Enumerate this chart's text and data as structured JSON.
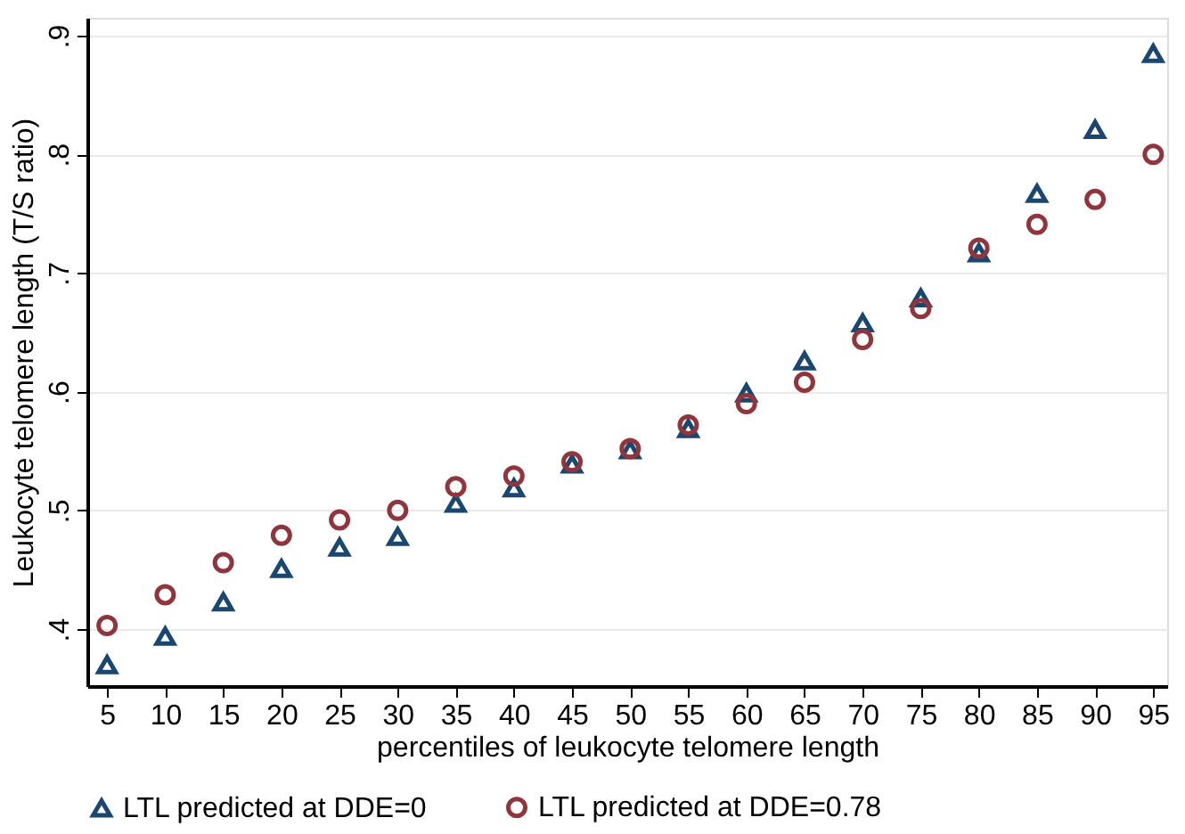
{
  "chart_data": {
    "type": "scatter",
    "xlabel": "percentiles of leukocyte telomere length",
    "ylabel": "Leukocyte telomere length (T/S ratio)",
    "x": [
      5,
      10,
      15,
      20,
      25,
      30,
      35,
      40,
      45,
      50,
      55,
      60,
      65,
      70,
      75,
      80,
      85,
      90,
      95
    ],
    "series": [
      {
        "name": "LTL predicted at DDE=0",
        "color": "#1a476f",
        "marker": "triangle",
        "values": [
          0.37,
          0.394,
          0.423,
          0.451,
          0.469,
          0.478,
          0.506,
          0.519,
          0.539,
          0.551,
          0.569,
          0.599,
          0.626,
          0.658,
          0.679,
          0.717,
          0.767,
          0.821,
          0.885
        ]
      },
      {
        "name": "LTL predicted at DDE=0.78",
        "color": "#90353b",
        "marker": "circle",
        "values": [
          0.403,
          0.429,
          0.456,
          0.479,
          0.492,
          0.5,
          0.52,
          0.529,
          0.541,
          0.552,
          0.572,
          0.59,
          0.608,
          0.644,
          0.67,
          0.721,
          0.741,
          0.762,
          0.8
        ]
      }
    ],
    "xlim": [
      3.3,
      96.2
    ],
    "xticks": [
      5,
      10,
      15,
      20,
      25,
      30,
      35,
      40,
      45,
      50,
      55,
      60,
      65,
      70,
      75,
      80,
      85,
      90,
      95
    ],
    "ylim": [
      0.352,
      0.915
    ],
    "yticks": [
      {
        "value": 0.4,
        "label": ".4"
      },
      {
        "value": 0.5,
        "label": ".5"
      },
      {
        "value": 0.6,
        "label": ".6"
      },
      {
        "value": 0.7,
        "label": ".7"
      },
      {
        "value": 0.8,
        "label": ".8"
      },
      {
        "value": 0.9,
        "label": ".9"
      }
    ],
    "grid": "y",
    "legend": "bottom"
  }
}
